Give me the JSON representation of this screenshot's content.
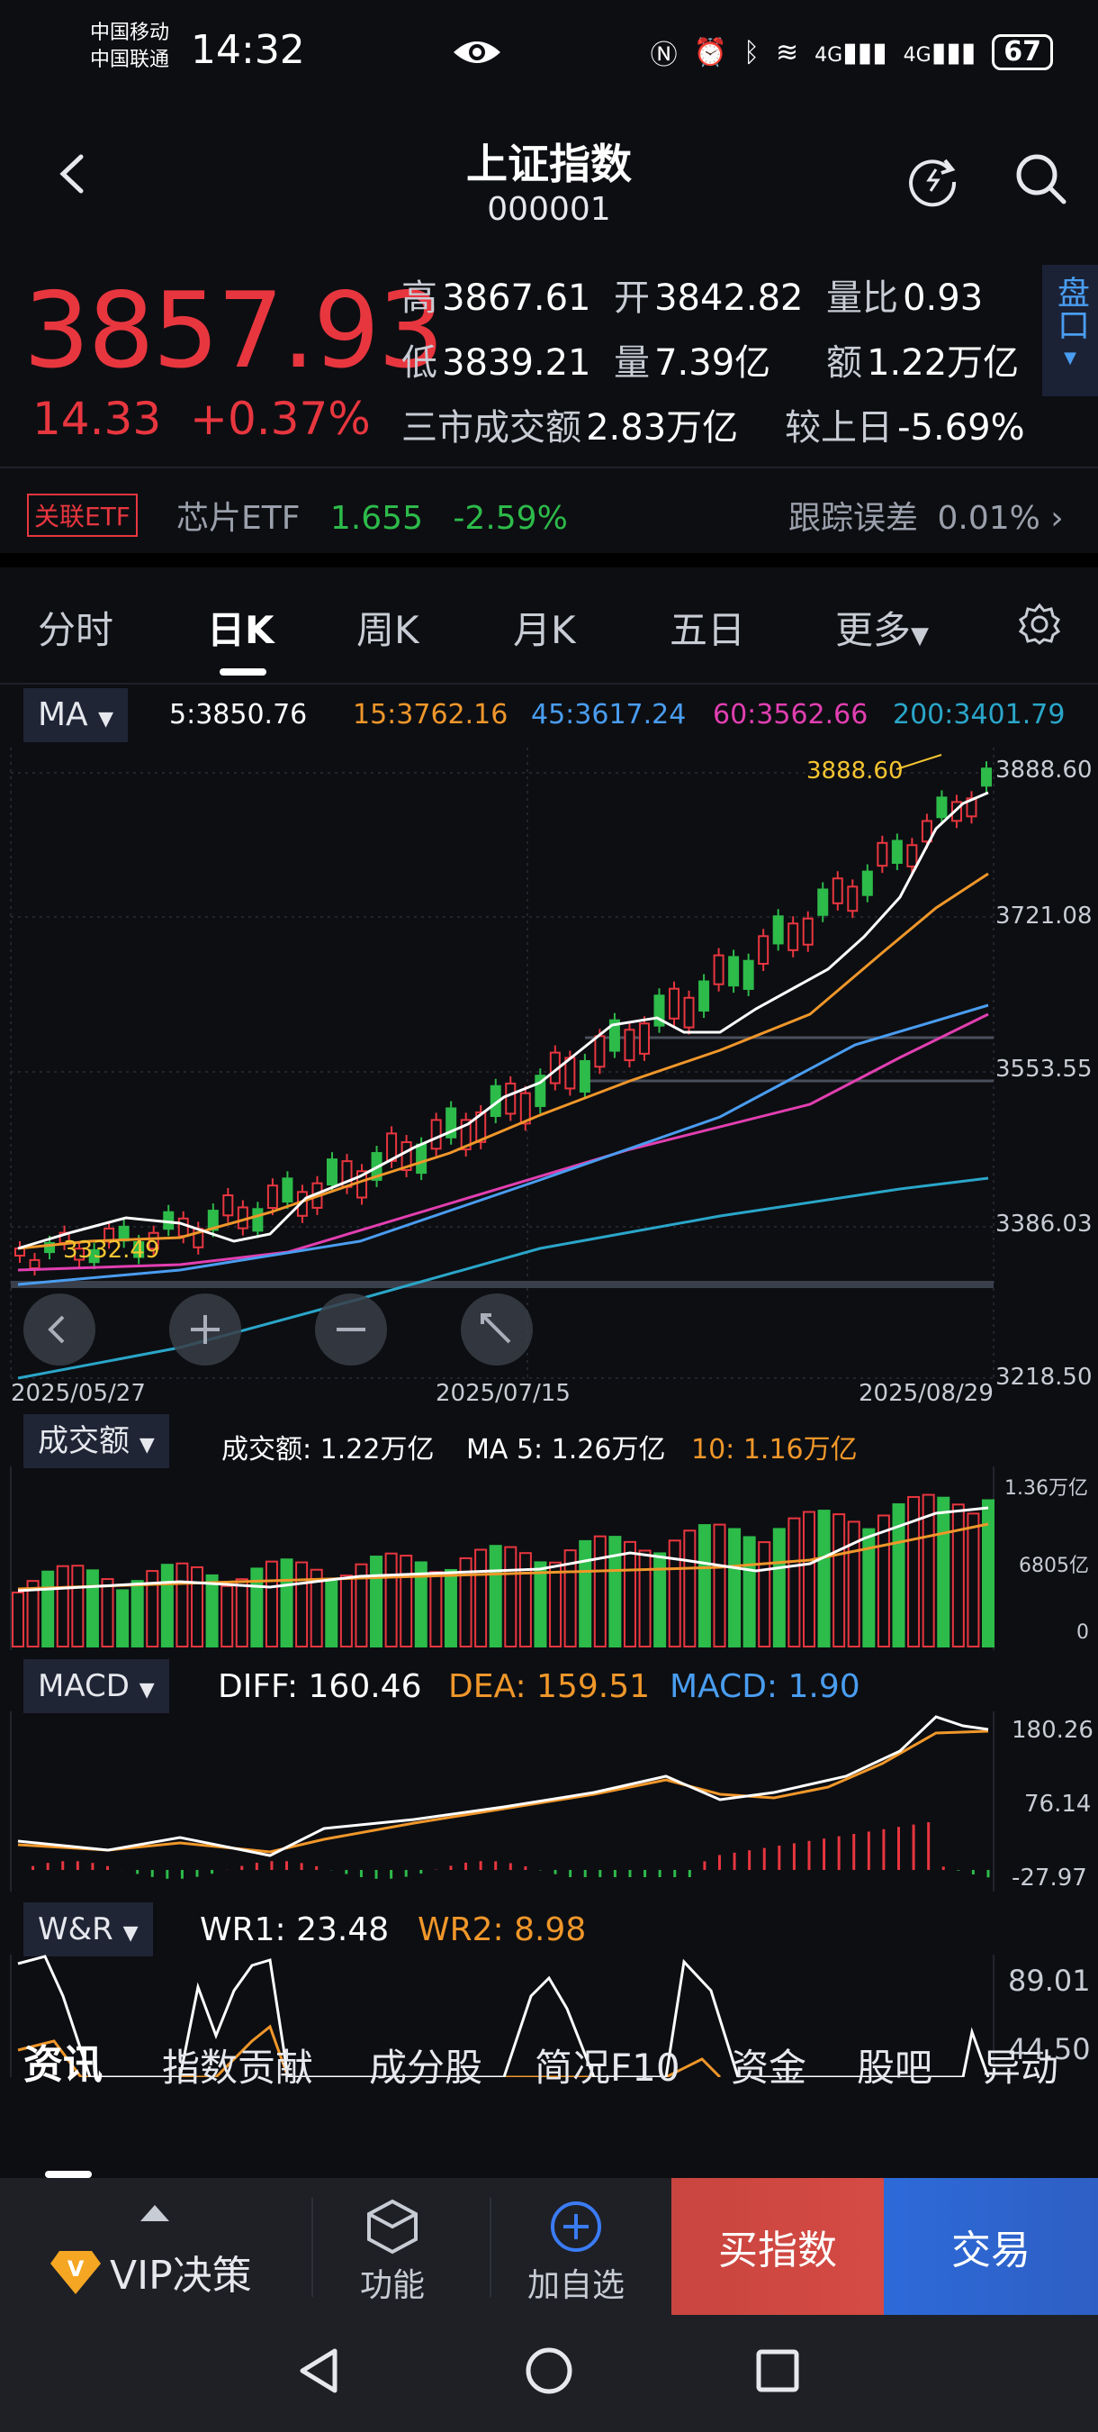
{
  "status_bar": {
    "carrier1": "中国移动",
    "carrier2": "中国联通",
    "time": "14:32",
    "network1": "4G",
    "network2": "4G",
    "battery": "67"
  },
  "header": {
    "title": "上证指数",
    "code": "000001"
  },
  "quote": {
    "price": "3857.93",
    "change": "14.33",
    "change_pct": "+0.37%",
    "high_label": "高",
    "high": "3867.61",
    "open_label": "开",
    "open": "3842.82",
    "ratio_label": "量比",
    "ratio": "0.93",
    "low_label": "低",
    "low": "3839.21",
    "vol_label": "量",
    "vol": "7.39亿",
    "amt_label": "额",
    "amt": "1.22万亿",
    "market_amt_label": "三市成交额",
    "market_amt": "2.83万亿",
    "vs_prev_label": "较上日",
    "vs_prev": "-5.69%",
    "pankou": "盘口"
  },
  "etf": {
    "tag": "关联ETF",
    "name": "芯片ETF",
    "price": "1.655",
    "change": "-2.59%",
    "tracking_label": "跟踪误差",
    "tracking": "0.01%"
  },
  "ktabs": [
    "分时",
    "日K",
    "周K",
    "月K",
    "五日",
    "更多"
  ],
  "ma": {
    "label": "MA",
    "ma5": "5:3850.76",
    "ma15": "15:3762.16",
    "ma45": "45:3617.24",
    "ma60": "60:3562.66",
    "ma200": "200:3401.79"
  },
  "price_chart": {
    "y_ticks": [
      "3888.60",
      "3721.08",
      "3553.55",
      "3386.03",
      "3218.50"
    ],
    "x_ticks": [
      "2025/05/27",
      "2025/07/15",
      "2025/08/29"
    ],
    "max_label": "3888.60",
    "min_label": "3332.49"
  },
  "volume": {
    "label": "成交额",
    "value": "成交额: 1.22万亿",
    "ma5": "MA 5: 1.26万亿",
    "ma10": "10: 1.16万亿",
    "y_ticks": [
      "1.36万亿",
      "6805亿",
      "0"
    ]
  },
  "macd": {
    "label": "MACD",
    "diff": "DIFF: 160.46",
    "dea": "DEA: 159.51",
    "macd": "MACD: 1.90",
    "y_ticks": [
      "180.26",
      "76.14",
      "-27.97"
    ]
  },
  "wr": {
    "label": "W&R",
    "wr1": "WR1: 23.48",
    "wr2": "WR2: 8.98",
    "y_ticks": [
      "89.01",
      "44.50"
    ]
  },
  "bottom_tabs": [
    "资讯",
    "指数贡献",
    "成分股",
    "简况F10",
    "资金",
    "股吧",
    "异动"
  ],
  "bottom_bar": {
    "vip": "VIP决策",
    "func": "功能",
    "add": "加自选",
    "buy": "买指数",
    "trade": "交易"
  }
}
